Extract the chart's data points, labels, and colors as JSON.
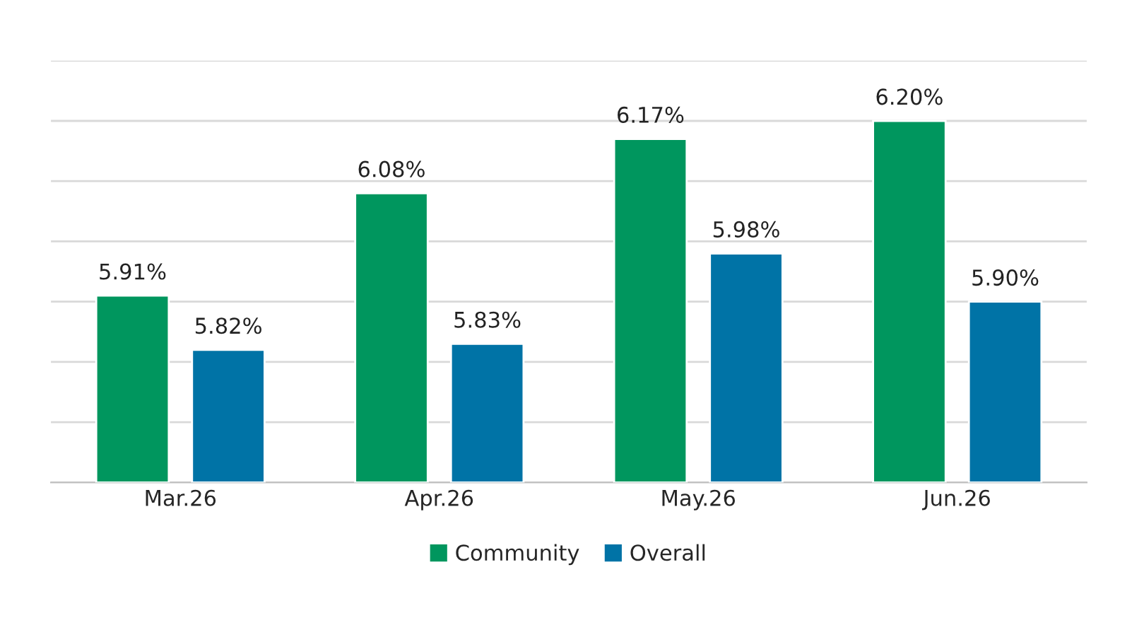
{
  "chart_data": {
    "type": "bar",
    "categories": [
      "Mar.26",
      "Apr.26",
      "May.26",
      "Jun.26"
    ],
    "series": [
      {
        "name": "Community",
        "color": "#00965e",
        "values": [
          5.91,
          6.08,
          6.17,
          6.2
        ],
        "value_labels": [
          "5.91%",
          "6.08%",
          "6.17%",
          "6.20%"
        ]
      },
      {
        "name": "Overall",
        "color": "#0073a6",
        "values": [
          5.82,
          5.83,
          5.98,
          5.9
        ],
        "value_labels": [
          "5.82%",
          "5.83%",
          "5.98%",
          "5.90%"
        ]
      }
    ],
    "ylim": [
      5.6,
      6.3
    ],
    "yticks": [
      {
        "value": 5.6,
        "label": null
      },
      {
        "value": 5.7,
        "label": null
      },
      {
        "value": 5.8,
        "label": null
      },
      {
        "value": 5.9,
        "label": null
      },
      {
        "value": 6.0,
        "label": null
      },
      {
        "value": 6.1,
        "label": null
      },
      {
        "value": 6.2,
        "label": null
      },
      {
        "value": 6.3,
        "label": null
      }
    ],
    "grid": "y",
    "legend": "bottom",
    "tick_labels": "x"
  }
}
